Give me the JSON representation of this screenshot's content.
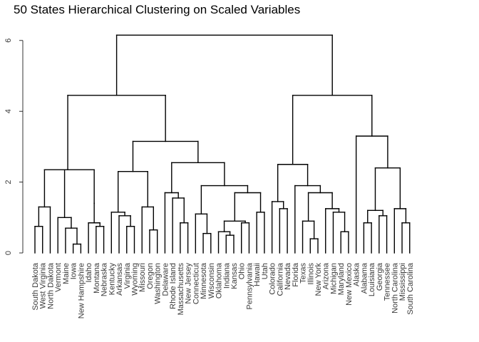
{
  "chart_data": {
    "type": "dendrogram",
    "title": "50 States Hierarchical Clustering on Scaled Variables",
    "xlabel": "",
    "ylabel": "",
    "ylim": [
      0,
      6.25
    ],
    "yticks": [
      0,
      2,
      4,
      6
    ],
    "grid": false,
    "legend": "none",
    "leaves": [
      "South Dakota",
      "West Virginia",
      "North Dakota",
      "Vermont",
      "Maine",
      "Iowa",
      "New Hampshire",
      "Idaho",
      "Montana",
      "Nebraska",
      "Kentucky",
      "Arkansas",
      "Virginia",
      "Wyoming",
      "Missouri",
      "Oregon",
      "Washington",
      "Delaware",
      "Rhode Island",
      "Massachusetts",
      "New Jersey",
      "Connecticut",
      "Minnesota",
      "Wisconsin",
      "Oklahoma",
      "Indiana",
      "Kansas",
      "Ohio",
      "Pennsylvania",
      "Hawaii",
      "Utah",
      "Colorado",
      "California",
      "Nevada",
      "Florida",
      "Texas",
      "Illinois",
      "New York",
      "Arizona",
      "Michigan",
      "Maryland",
      "New Mexico",
      "Alaska",
      "Alabama",
      "Louisiana",
      "Georgia",
      "Tennessee",
      "North Carolina",
      "Mississippi",
      "South Carolina"
    ],
    "tree": [
      6.15,
      [
        4.45,
        [
          2.35,
          [
            1.3,
            [
              0.75,
              "South Dakota",
              "West Virginia"
            ],
            "North Dakota"
          ],
          [
            1.0,
            "Vermont",
            [
              0.7,
              "Maine",
              [
                0.25,
                "Iowa",
                "New Hampshire"
              ]
            ]
          ],
          [
            1.4,
            [
              0.85,
              "Idaho",
              [
                0.75,
                "Montana",
                "Nebraska"
              ]
            ]
          ]
        ],
        [
          3.15,
          [
            2.3,
            [
              1.15,
              "Kentucky",
              [
                1.05,
                "Arkansas",
                [
                  0.75,
                  "Virginia",
                  "Wyoming"
                ]
              ]
            ],
            [
              1.3,
              "Missouri",
              [
                0.65,
                "Oregon",
                "Washington"
              ]
            ]
          ],
          [
            2.55,
            [
              1.7,
              "Delaware",
              [
                1.55,
                "Rhode Island",
                [
                  0.85,
                  "Massachusetts",
                  "New Jersey"
                ]
              ]
            ],
            [
              1.9,
              [
                1.1,
                "Connecticut",
                [
                  0.55,
                  "Minnesota",
                  "Wisconsin"
                ]
              ],
              [
                1.7,
                [
                  0.9,
                  [
                    0.6,
                    "Oklahoma",
                    [
                      0.5,
                      "Indiana",
                      "Kansas"
                    ]
                  ],
                  [
                    0.85,
                    "Ohio",
                    "Pennsylvania"
                  ]
                ],
                [
                  1.15,
                  "Hawaii",
                  "Utah"
                ]
              ]
            ]
          ]
        ]
      ],
      [
        4.45,
        [
          2.5,
          [
            1.45,
            "Colorado",
            [
              1.25,
              "California",
              "Nevada"
            ]
          ],
          [
            1.9,
            "Florida",
            [
              1.7,
              [
                0.9,
                "Texas",
                [
                  0.4,
                  "Illinois",
                  "New York"
                ]
              ],
              [
                1.25,
                "Arizona",
                [
                  1.15,
                  "Michigan",
                  [
                    0.6,
                    "Maryland",
                    "New Mexico"
                  ]
                ]
              ]
            ]
          ]
        ],
        [
          3.3,
          "Alaska",
          [
            2.4,
            [
              1.2,
              [
                0.85,
                "Alabama",
                "Louisiana"
              ],
              [
                1.05,
                "Georgia",
                "Tennessee"
              ]
            ],
            [
              1.25,
              "North Carolina",
              [
                0.85,
                "Mississippi",
                "South Carolina"
              ]
            ]
          ]
        ]
      ]
    ]
  }
}
